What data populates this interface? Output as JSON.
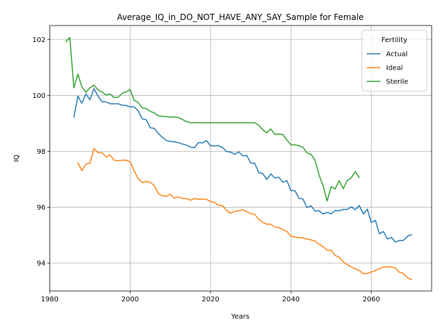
{
  "chart_data": {
    "type": "line",
    "title": "Average_IQ_in_DO_NOT_HAVE_ANY_SAY_Sample for Female",
    "xlabel": "Years",
    "ylabel": "IQ",
    "xlim": [
      1980,
      2075
    ],
    "ylim": [
      93.0,
      102.5
    ],
    "xticks": [
      1980,
      2000,
      2020,
      2040,
      2060
    ],
    "yticks": [
      94,
      96,
      98,
      100,
      102
    ],
    "grid": true,
    "legend": {
      "title": "Fertility",
      "position": "top-right"
    },
    "series": [
      {
        "name": "Actual",
        "color": "#1f77b4",
        "x": [
          1986,
          1987,
          1988,
          1989,
          1990,
          1991,
          1992,
          1993,
          1994,
          1995,
          1996,
          1997,
          1998,
          1999,
          2000,
          2001,
          2002,
          2003,
          2004,
          2005,
          2006,
          2007,
          2008,
          2009,
          2010,
          2011,
          2012,
          2013,
          2014,
          2015,
          2016,
          2017,
          2018,
          2019,
          2020,
          2021,
          2022,
          2023,
          2024,
          2025,
          2026,
          2027,
          2028,
          2029,
          2030,
          2031,
          2032,
          2033,
          2034,
          2035,
          2036,
          2037,
          2038,
          2039,
          2040,
          2041,
          2042,
          2043,
          2044,
          2045,
          2046,
          2047,
          2048,
          2049,
          2050,
          2051,
          2052,
          2053,
          2054,
          2055,
          2056,
          2057,
          2058,
          2059,
          2060,
          2061,
          2062,
          2063,
          2064,
          2065,
          2066,
          2067,
          2068,
          2069,
          2070
        ],
        "y": [
          99.22,
          99.97,
          99.72,
          100.05,
          99.84,
          100.24,
          99.98,
          99.77,
          99.77,
          99.7,
          99.7,
          99.7,
          99.65,
          99.64,
          99.59,
          99.59,
          99.45,
          99.16,
          99.13,
          98.84,
          98.82,
          98.64,
          98.5,
          98.39,
          98.35,
          98.34,
          98.31,
          98.26,
          98.22,
          98.15,
          98.13,
          98.31,
          98.3,
          98.38,
          98.2,
          98.19,
          98.2,
          98.13,
          97.99,
          97.97,
          97.89,
          97.98,
          97.84,
          97.85,
          97.58,
          97.57,
          97.23,
          97.2,
          96.99,
          97.19,
          97.04,
          97.07,
          96.89,
          96.95,
          96.59,
          96.59,
          96.32,
          96.29,
          95.98,
          96.05,
          95.86,
          95.87,
          95.76,
          95.81,
          95.76,
          95.88,
          95.87,
          95.92,
          95.92,
          96.01,
          95.91,
          96.06,
          95.76,
          95.93,
          95.45,
          95.53,
          95.05,
          95.13,
          94.86,
          94.92,
          94.75,
          94.81,
          94.81,
          94.96,
          95.02
        ]
      },
      {
        "name": "Ideal",
        "color": "#ff7f0e",
        "x": [
          1987,
          1988,
          1989,
          1990,
          1991,
          1992,
          1993,
          1994,
          1995,
          1996,
          1997,
          1998,
          1999,
          2000,
          2001,
          2002,
          2003,
          2004,
          2005,
          2006,
          2007,
          2008,
          2009,
          2010,
          2011,
          2012,
          2013,
          2014,
          2015,
          2016,
          2017,
          2018,
          2019,
          2020,
          2021,
          2022,
          2023,
          2024,
          2025,
          2026,
          2027,
          2028,
          2029,
          2030,
          2031,
          2032,
          2033,
          2034,
          2035,
          2036,
          2037,
          2038,
          2039,
          2040,
          2041,
          2042,
          2043,
          2044,
          2045,
          2046,
          2047,
          2048,
          2049,
          2050,
          2051,
          2052,
          2053,
          2054,
          2055,
          2056,
          2057,
          2058,
          2059,
          2060,
          2061,
          2062,
          2063,
          2064,
          2065,
          2066,
          2067,
          2068,
          2069,
          2070
        ],
        "y": [
          97.59,
          97.31,
          97.54,
          97.57,
          98.1,
          97.95,
          97.95,
          97.8,
          97.87,
          97.68,
          97.67,
          97.68,
          97.68,
          97.62,
          97.3,
          97.02,
          96.88,
          96.92,
          96.89,
          96.77,
          96.49,
          96.41,
          96.39,
          96.46,
          96.32,
          96.37,
          96.32,
          96.31,
          96.25,
          96.31,
          96.28,
          96.29,
          96.28,
          96.2,
          96.17,
          96.07,
          96.05,
          95.88,
          95.78,
          95.85,
          95.87,
          95.91,
          95.84,
          95.77,
          95.74,
          95.56,
          95.46,
          95.39,
          95.39,
          95.29,
          95.27,
          95.2,
          95.13,
          94.96,
          94.93,
          94.91,
          94.9,
          94.86,
          94.83,
          94.79,
          94.67,
          94.59,
          94.46,
          94.46,
          94.27,
          94.21,
          94.05,
          93.94,
          93.87,
          93.79,
          93.73,
          93.62,
          93.63,
          93.68,
          93.73,
          93.8,
          93.86,
          93.86,
          93.86,
          93.82,
          93.67,
          93.63,
          93.47,
          93.41
        ]
      },
      {
        "name": "Sterile",
        "color": "#2ca02c",
        "x": [
          1984,
          1985,
          1986,
          1987,
          1988,
          1989,
          1990,
          1991,
          1992,
          1993,
          1994,
          1995,
          1996,
          1997,
          1998,
          1999,
          2000,
          2001,
          2002,
          2003,
          2004,
          2005,
          2006,
          2007,
          2008,
          2009,
          2010,
          2011,
          2012,
          2013,
          2014,
          2015,
          2016,
          2017,
          2018,
          2019,
          2020,
          2021,
          2022,
          2023,
          2024,
          2025,
          2026,
          2027,
          2028,
          2029,
          2030,
          2031,
          2032,
          2033,
          2034,
          2035,
          2036,
          2037,
          2038,
          2039,
          2040,
          2041,
          2042,
          2043,
          2044,
          2045,
          2046,
          2047,
          2048,
          2049,
          2050,
          2051,
          2052,
          2053,
          2054,
          2055,
          2056,
          2057
        ],
        "y": [
          101.92,
          102.07,
          100.27,
          100.76,
          100.31,
          100.11,
          100.27,
          100.37,
          100.2,
          100.12,
          100.02,
          100.05,
          99.92,
          99.93,
          100.07,
          100.12,
          100.21,
          99.82,
          99.75,
          99.55,
          99.53,
          99.43,
          99.37,
          99.27,
          99.25,
          99.24,
          99.22,
          99.23,
          99.21,
          99.14,
          99.06,
          99.03,
          99.02,
          99.02,
          99.02,
          99.02,
          99.02,
          99.02,
          99.02,
          99.02,
          99.02,
          99.02,
          99.02,
          99.02,
          99.02,
          99.02,
          99.02,
          99.02,
          98.93,
          98.77,
          98.66,
          98.8,
          98.6,
          98.62,
          98.6,
          98.4,
          98.23,
          98.23,
          98.2,
          98.14,
          97.94,
          97.89,
          97.68,
          97.15,
          96.77,
          96.22,
          96.73,
          96.65,
          96.95,
          96.66,
          96.95,
          97.05,
          97.27,
          97.06
        ]
      }
    ]
  }
}
